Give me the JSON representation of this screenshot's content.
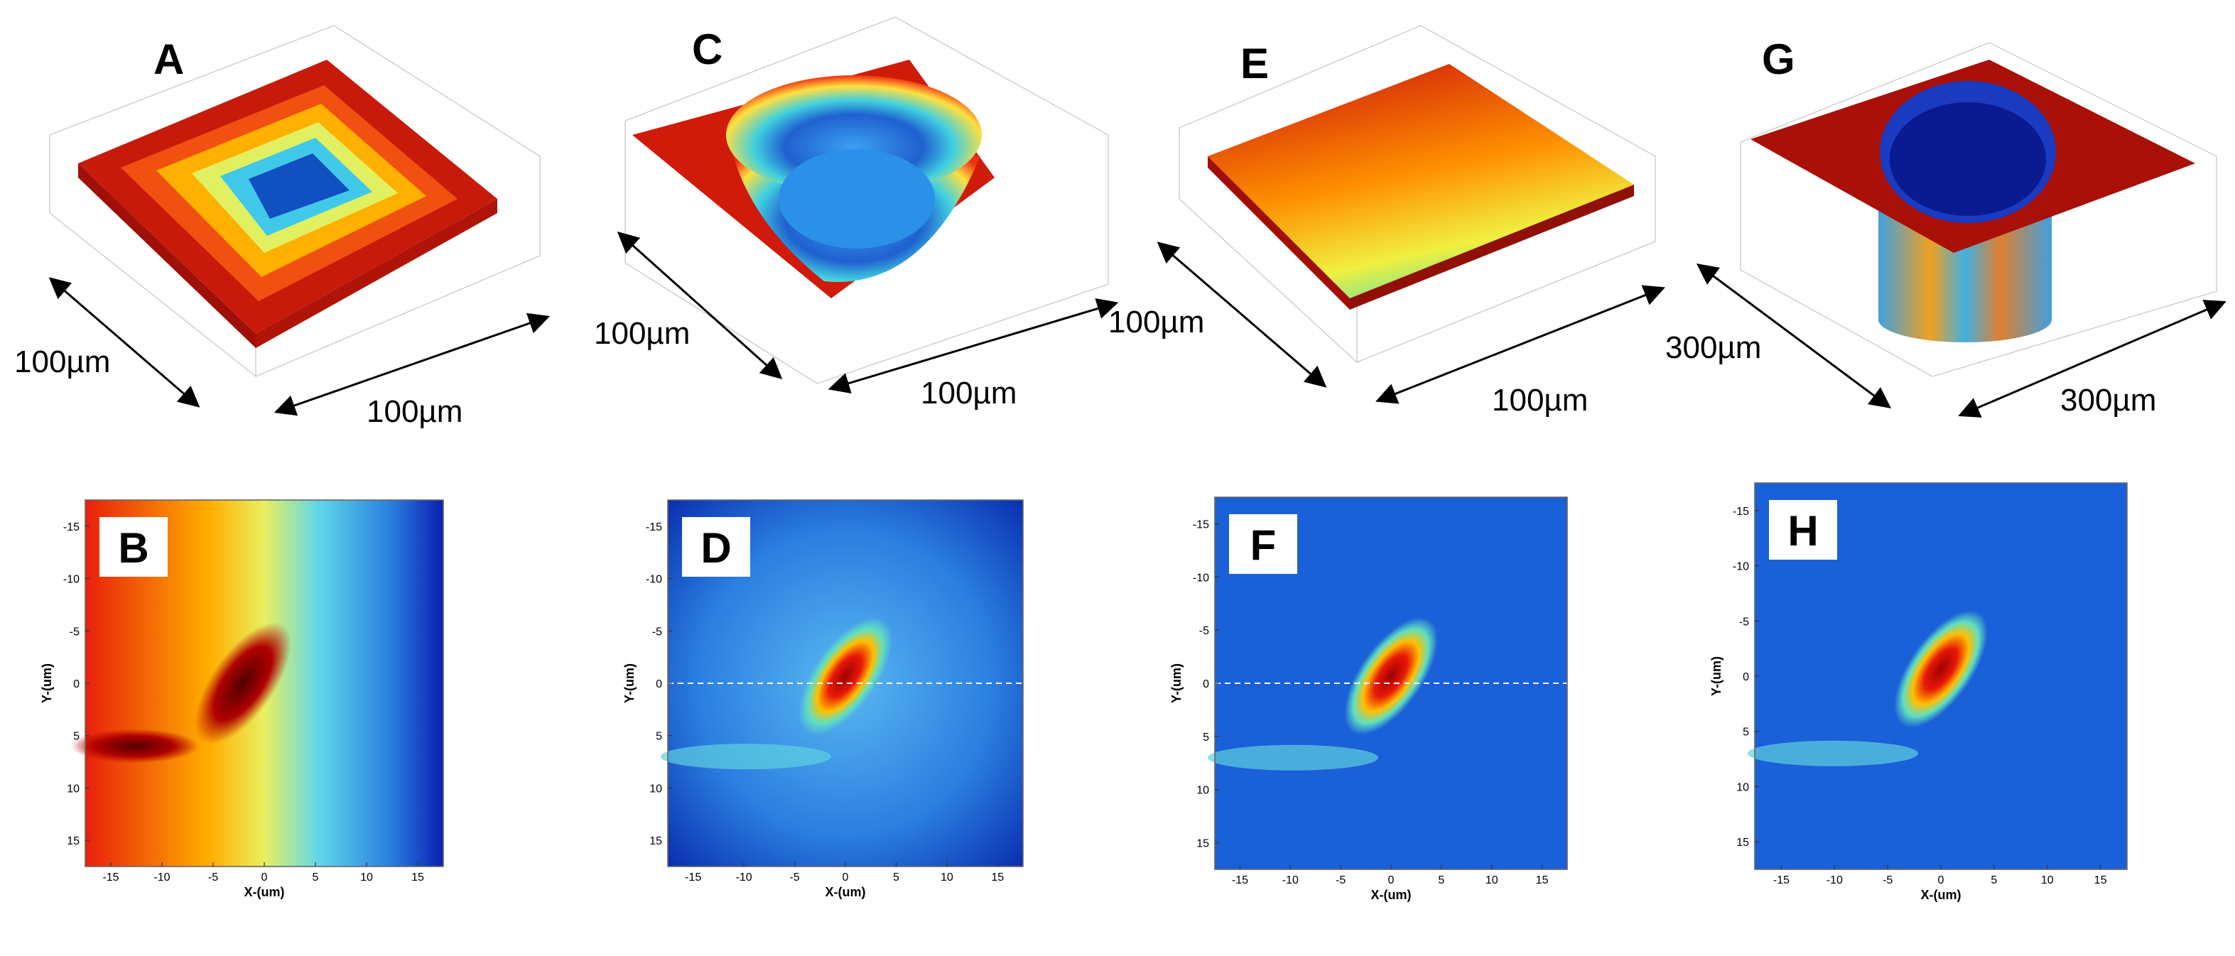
{
  "top_panels": [
    {
      "label": "A",
      "dim_left": "100µm",
      "dim_right": "100µm"
    },
    {
      "label": "C",
      "dim_left": "100µm",
      "dim_right": "100µm"
    },
    {
      "label": "E",
      "dim_left": "100µm",
      "dim_right": "100µm"
    },
    {
      "label": "G",
      "dim_left": "300µm",
      "dim_right": "300µm"
    }
  ],
  "bottom_panels": [
    {
      "label": "B"
    },
    {
      "label": "D"
    },
    {
      "label": "F"
    },
    {
      "label": "H"
    }
  ],
  "heatmap_axes": {
    "x_label": "X-(um)",
    "y_label": "Y-(um)",
    "xlim": [
      -17.5,
      17.5
    ],
    "ylim": [
      -17.5,
      17.5
    ],
    "xticks": [
      -15,
      -10,
      -5,
      0,
      5,
      10,
      15
    ],
    "yticks": [
      -15,
      -10,
      -5,
      0,
      5,
      10,
      15
    ]
  }
}
